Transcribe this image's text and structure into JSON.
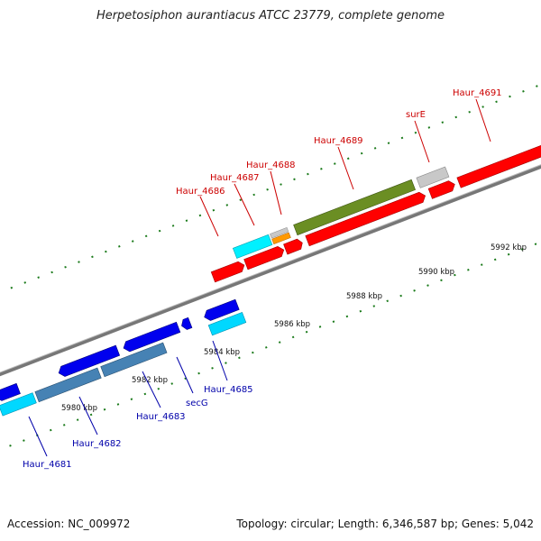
{
  "title": "Herpetosiphon aurantiacus ATCC 23779, complete genome",
  "footer": {
    "accession": "Accession: NC_009972",
    "summary": "Topology: circular; Length: 6,346,587 bp; Genes: 5,042"
  },
  "colors": {
    "red": "#ff0000",
    "dark_red": "#cc0000",
    "blue": "#0000ee",
    "cyan": "#00d8ff",
    "steel_blue": "#4682b4",
    "olive": "#6b8e23",
    "grey": "#c8c8c8",
    "orange": "#ff9900",
    "label_red": "#cc0000",
    "label_blue": "#0000aa",
    "tick_green": "#1a7a1a"
  },
  "kbp_labels": [
    "5980 kbp",
    "5982 kbp",
    "5984 kbp",
    "5986 kbp",
    "5988 kbp",
    "5990 kbp",
    "5992 kbp"
  ],
  "gene_labels_top": [
    "Haur_4686",
    "Haur_4687",
    "Haur_4688",
    "Haur_4689",
    "surE",
    "Haur_4691"
  ],
  "gene_labels_bottom": [
    "Haur_4681",
    "Haur_4682",
    "Haur_4683",
    "secG",
    "Haur_4685"
  ]
}
